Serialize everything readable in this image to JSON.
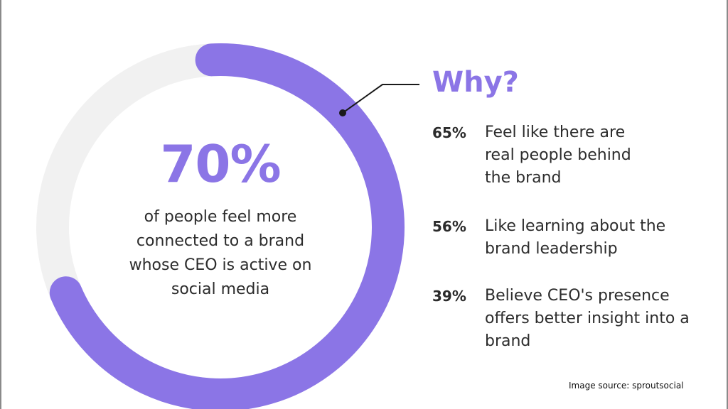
{
  "colors": {
    "accent": "#8b75e6",
    "track": "#f1f1f1",
    "text": "#2c2c2c"
  },
  "chart_data": {
    "type": "pie",
    "values": [
      70,
      30
    ],
    "main_value_label": "70%",
    "caption": "of people feel more connected to a brand whose CEO is active on social media"
  },
  "why_title": "Why?",
  "reasons": [
    {
      "value": 65,
      "pct": "65%",
      "text": "Feel like there are real people behind the brand"
    },
    {
      "value": 56,
      "pct": "56%",
      "text": "Like learning about the brand leadership"
    },
    {
      "value": 39,
      "pct": "39%",
      "text": "Believe CEO's presence offers better insight into a brand"
    }
  ],
  "source": "Image source: sproutsocial"
}
